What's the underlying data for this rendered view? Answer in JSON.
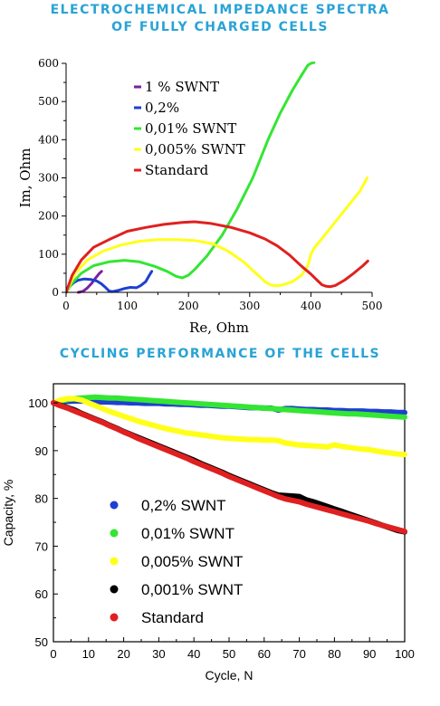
{
  "page": {
    "title_eis_line1": "ELECTROCHEMICAL IMPEDANCE SPECTRA",
    "title_eis_line2": "OF FULLY CHARGED CELLS",
    "title_cycling": "CYCLING PERFORMANCE OF THE CELLS"
  },
  "chart_data": [
    {
      "type": "line",
      "title": "",
      "xlabel": "Re, Ohm",
      "ylabel": "Im, Ohm",
      "xlim": [
        0,
        500
      ],
      "ylim": [
        0,
        600
      ],
      "xticks": [
        "0",
        "100",
        "200",
        "300",
        "400",
        "500"
      ],
      "yticks": [
        "0",
        "100",
        "200",
        "300",
        "400",
        "500",
        "600"
      ],
      "grid": false,
      "legend_position": "top-left",
      "series": [
        {
          "name": "1 % SWNT",
          "color": "#7b1fa2",
          "x": [
            20,
            28,
            35,
            42,
            48,
            54,
            58
          ],
          "y": [
            0,
            3,
            12,
            24,
            37,
            49,
            55
          ]
        },
        {
          "name": "0,2%",
          "color": "#1f3fd1",
          "x": [
            0,
            5,
            12,
            20,
            30,
            40,
            50,
            58,
            65,
            70,
            75,
            85,
            95,
            105,
            115,
            122,
            130,
            135,
            138,
            140
          ],
          "y": [
            0,
            14,
            25,
            32,
            35,
            34,
            30,
            22,
            12,
            4,
            2,
            5,
            10,
            13,
            12,
            18,
            28,
            42,
            50,
            55
          ]
        },
        {
          "name": "0,01% SWNT",
          "color": "#33e633",
          "x": [
            0,
            10,
            25,
            45,
            70,
            95,
            120,
            145,
            165,
            180,
            190,
            200,
            210,
            230,
            255,
            280,
            305,
            330,
            350,
            370,
            385,
            395,
            400,
            405
          ],
          "y": [
            0,
            25,
            50,
            70,
            80,
            84,
            80,
            68,
            55,
            42,
            38,
            45,
            60,
            95,
            150,
            220,
            300,
            400,
            470,
            530,
            570,
            595,
            600,
            602
          ]
        },
        {
          "name": "0,005% SWNT",
          "color": "#ffff1a",
          "x": [
            0,
            15,
            35,
            60,
            90,
            120,
            150,
            180,
            210,
            240,
            265,
            290,
            310,
            325,
            335,
            345,
            355,
            370,
            385,
            395,
            400,
            405,
            420,
            440,
            460,
            480,
            492
          ],
          "y": [
            0,
            50,
            85,
            108,
            124,
            134,
            138,
            138,
            136,
            127,
            108,
            80,
            50,
            28,
            19,
            17,
            20,
            28,
            45,
            70,
            100,
            115,
            145,
            185,
            225,
            265,
            300
          ]
        },
        {
          "name": "Standard",
          "color": "#e02020",
          "x": [
            0,
            10,
            25,
            45,
            70,
            100,
            130,
            160,
            190,
            210,
            235,
            270,
            300,
            325,
            345,
            365,
            385,
            400,
            410,
            418,
            425,
            432,
            440,
            455,
            470,
            485,
            493
          ],
          "y": [
            0,
            45,
            85,
            118,
            138,
            160,
            170,
            178,
            183,
            185,
            181,
            170,
            156,
            140,
            122,
            98,
            68,
            48,
            32,
            20,
            16,
            15,
            18,
            32,
            50,
            70,
            82
          ]
        }
      ]
    },
    {
      "type": "scatter",
      "title": "",
      "xlabel": "Cycle, N",
      "ylabel": "Capacity, %",
      "xlim": [
        0,
        100
      ],
      "ylim": [
        50,
        104
      ],
      "xticks": [
        "0",
        "10",
        "20",
        "30",
        "40",
        "50",
        "60",
        "70",
        "80",
        "90",
        "100"
      ],
      "yticks": [
        "50",
        "60",
        "70",
        "80",
        "90",
        "100"
      ],
      "grid": false,
      "legend_position": "bottom-left",
      "x": [
        0,
        2,
        4,
        6,
        8,
        10,
        12,
        14,
        16,
        18,
        20,
        22,
        24,
        26,
        28,
        30,
        32,
        34,
        36,
        38,
        40,
        42,
        44,
        46,
        48,
        50,
        52,
        54,
        56,
        58,
        60,
        62,
        64,
        66,
        68,
        70,
        72,
        74,
        76,
        78,
        80,
        82,
        84,
        86,
        88,
        90,
        92,
        94,
        96,
        98,
        100
      ],
      "series": [
        {
          "name": "0,2% SWNT",
          "color": "#1f3fd1",
          "values": [
            100,
            100.2,
            100.3,
            100.4,
            100.4,
            100.3,
            100.3,
            100.2,
            100.2,
            100.1,
            100.1,
            100,
            100,
            99.9,
            99.9,
            99.9,
            99.8,
            99.8,
            99.7,
            99.7,
            99.6,
            99.5,
            99.5,
            99.4,
            99.3,
            99.3,
            99.2,
            99.1,
            99,
            99,
            98.9,
            98.9,
            98.5,
            98.8,
            98.8,
            98.7,
            98.6,
            98.6,
            98.5,
            98.5,
            98.4,
            98.4,
            98.3,
            98.3,
            98.3,
            98.2,
            98.2,
            98.1,
            98.1,
            98,
            98
          ]
        },
        {
          "name": "0,01% SWNT",
          "color": "#33e633",
          "values": [
            100,
            100.4,
            100.7,
            100.9,
            101,
            101.1,
            101.2,
            101.1,
            101,
            101,
            100.9,
            100.8,
            100.7,
            100.6,
            100.5,
            100.4,
            100.3,
            100.2,
            100.1,
            100,
            99.9,
            99.8,
            99.7,
            99.6,
            99.5,
            99.4,
            99.3,
            99.2,
            99.1,
            99,
            98.9,
            98.8,
            98.7,
            98.6,
            98.5,
            98.4,
            98.3,
            98.2,
            98.1,
            98,
            97.9,
            97.8,
            97.7,
            97.7,
            97.6,
            97.5,
            97.4,
            97.3,
            97.2,
            97.1,
            97
          ]
        },
        {
          "name": "0,005% SWNT",
          "color": "#ffff1a",
          "values": [
            100,
            100.6,
            100.9,
            100.9,
            100.6,
            100,
            99.4,
            98.8,
            98.2,
            97.7,
            97.2,
            96.7,
            96.2,
            95.8,
            95.4,
            95,
            94.6,
            94.3,
            94,
            93.7,
            93.5,
            93.3,
            93.1,
            92.9,
            92.7,
            92.6,
            92.5,
            92.4,
            92.3,
            92.3,
            92.2,
            92.2,
            92.1,
            91.6,
            91.4,
            91.2,
            91.1,
            91,
            90.9,
            90.8,
            91.2,
            90.9,
            90.7,
            90.5,
            90.3,
            90.2,
            89.9,
            89.7,
            89.5,
            89.3,
            89.2
          ]
        },
        {
          "name": "0,001% SWNT",
          "color": "#000000",
          "values": [
            100,
            99.5,
            99,
            98.5,
            97.8,
            97.2,
            96.6,
            96,
            95.3,
            94.7,
            94,
            93.4,
            92.8,
            92.2,
            91.6,
            91,
            90.4,
            89.8,
            89.2,
            88.6,
            88,
            87.3,
            86.7,
            86.1,
            85.5,
            84.8,
            84.2,
            83.6,
            83,
            82.4,
            81.8,
            81.2,
            80.7,
            80.6,
            80.5,
            80.4,
            79.7,
            79.3,
            78.8,
            78.3,
            77.8,
            77.3,
            76.8,
            76.3,
            75.8,
            75.3,
            74.8,
            74.3,
            73.8,
            73.3,
            73
          ]
        },
        {
          "name": "Standard",
          "color": "#e02020",
          "values": [
            100,
            99.4,
            98.9,
            98.3,
            97.7,
            97.1,
            96.5,
            95.9,
            95.2,
            94.6,
            93.9,
            93.3,
            92.6,
            92,
            91.4,
            90.8,
            90.2,
            89.6,
            89,
            88.4,
            87.7,
            87.1,
            86.5,
            85.9,
            85.3,
            84.6,
            84,
            83.4,
            82.8,
            82.2,
            81.6,
            81,
            80.4,
            79.9,
            79.6,
            79.3,
            78.8,
            78.4,
            78,
            77.6,
            77.2,
            76.8,
            76.4,
            76,
            75.6,
            75.2,
            74.7,
            74.3,
            73.9,
            73.5,
            73.1
          ]
        }
      ]
    }
  ]
}
